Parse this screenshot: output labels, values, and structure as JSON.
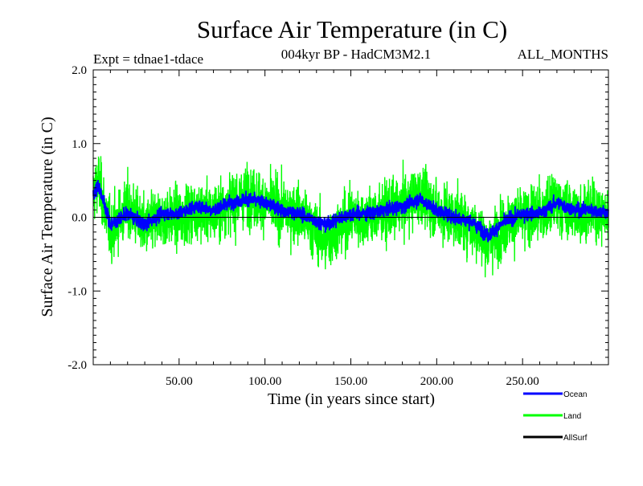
{
  "chart_data": {
    "type": "line",
    "title": "Surface Air Temperature (in C)",
    "subtitle_left": "Expt = tdnae1-tdace",
    "subtitle_center": "004kyr BP - HadCM3M2.1",
    "subtitle_right": "ALL_MONTHS",
    "xlabel": "Time (in years since start)",
    "ylabel": "Surface Air Temperature (in C)",
    "xlim": [
      0,
      300
    ],
    "ylim": [
      -2.0,
      2.0
    ],
    "x_ticks": [
      50,
      100,
      150,
      200,
      250
    ],
    "x_tick_labels": [
      "50.00",
      "100.00",
      "150.00",
      "200.00",
      "250.00"
    ],
    "y_ticks": [
      -2.0,
      -1.0,
      0.0,
      1.0,
      2.0
    ],
    "y_tick_labels": [
      "-2.0",
      "-1.0",
      "0.0",
      "1.0",
      "2.0"
    ],
    "reference_line": 0.0,
    "samples_per_year": 12,
    "series": [
      {
        "name": "Land",
        "color": "#00ff00",
        "amplitude": 0.55,
        "anchors": [
          [
            0,
            0.3
          ],
          [
            3,
            0.5
          ],
          [
            10,
            -0.2
          ],
          [
            20,
            0.15
          ],
          [
            30,
            -0.15
          ],
          [
            40,
            0.0
          ],
          [
            50,
            0.0
          ],
          [
            60,
            0.1
          ],
          [
            70,
            0.05
          ],
          [
            80,
            0.2
          ],
          [
            90,
            0.3
          ],
          [
            100,
            0.2
          ],
          [
            110,
            0.1
          ],
          [
            120,
            0.05
          ],
          [
            130,
            -0.2
          ],
          [
            135,
            -0.35
          ],
          [
            140,
            -0.2
          ],
          [
            150,
            0.0
          ],
          [
            160,
            0.0
          ],
          [
            170,
            0.05
          ],
          [
            180,
            0.15
          ],
          [
            190,
            0.3
          ],
          [
            200,
            0.1
          ],
          [
            210,
            0.0
          ],
          [
            220,
            -0.1
          ],
          [
            230,
            -0.35
          ],
          [
            240,
            -0.1
          ],
          [
            250,
            0.0
          ],
          [
            260,
            0.05
          ],
          [
            270,
            0.2
          ],
          [
            280,
            0.05
          ],
          [
            290,
            0.1
          ],
          [
            300,
            0.0
          ]
        ]
      },
      {
        "name": "Ocean",
        "color": "#0000ff",
        "amplitude": 0.13,
        "anchors": [
          [
            0,
            0.3
          ],
          [
            3,
            0.45
          ],
          [
            10,
            -0.1
          ],
          [
            20,
            0.05
          ],
          [
            30,
            -0.1
          ],
          [
            40,
            0.05
          ],
          [
            50,
            0.05
          ],
          [
            60,
            0.15
          ],
          [
            70,
            0.1
          ],
          [
            80,
            0.2
          ],
          [
            90,
            0.25
          ],
          [
            100,
            0.2
          ],
          [
            110,
            0.1
          ],
          [
            120,
            0.05
          ],
          [
            130,
            -0.05
          ],
          [
            135,
            -0.1
          ],
          [
            140,
            -0.05
          ],
          [
            150,
            0.05
          ],
          [
            160,
            0.05
          ],
          [
            170,
            0.1
          ],
          [
            180,
            0.15
          ],
          [
            190,
            0.25
          ],
          [
            200,
            0.1
          ],
          [
            210,
            0.0
          ],
          [
            220,
            -0.05
          ],
          [
            230,
            -0.25
          ],
          [
            240,
            -0.05
          ],
          [
            250,
            0.05
          ],
          [
            260,
            0.05
          ],
          [
            270,
            0.2
          ],
          [
            280,
            0.1
          ],
          [
            290,
            0.1
          ],
          [
            300,
            0.05
          ]
        ]
      }
    ],
    "legend": [
      {
        "name": "Ocean",
        "color": "#0000ff"
      },
      {
        "name": "Land",
        "color": "#00ff00"
      },
      {
        "name": "AllSurf",
        "color": "#000000"
      }
    ],
    "legend_position": "bottom-right"
  }
}
